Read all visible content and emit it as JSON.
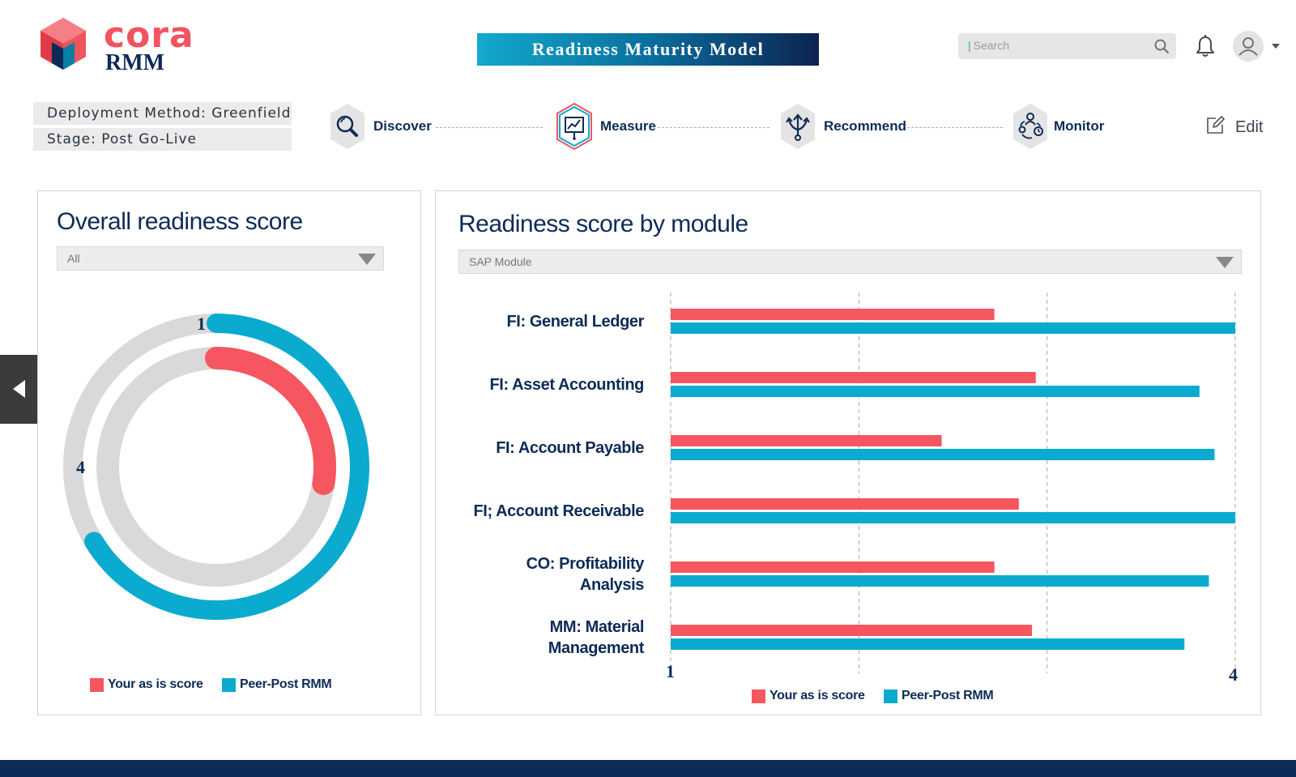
{
  "app": {
    "logo_word": "cora",
    "logo_sub": "RMM",
    "title": "Readiness Maturity Model"
  },
  "header": {
    "search_placeholder": "Search",
    "edit_label": "Edit"
  },
  "info": {
    "deployment_method": "Deployment Method: Greenfield",
    "stage": "Stage: Post Go-Live"
  },
  "steps": [
    {
      "label": "Discover",
      "icon": "discover-magnifier-icon"
    },
    {
      "label": "Measure",
      "icon": "measure-chart-icon"
    },
    {
      "label": "Recommend",
      "icon": "recommend-arrows-icon"
    },
    {
      "label": "Monitor",
      "icon": "monitor-people-icon"
    }
  ],
  "colors": {
    "your_score": "#f5565f",
    "peer": "#0aabcf",
    "track": "#d9d9d9",
    "navy": "#0d2b57"
  },
  "overall": {
    "title": "Overall readiness score",
    "filter_value": "All",
    "legend": [
      "Your as is score",
      "Peer-Post RMM"
    ]
  },
  "module": {
    "title": "Readiness score by module",
    "filter_value": "SAP Module",
    "legend": [
      "Your as is score",
      "Peer-Post RMM"
    ]
  },
  "chart_data": [
    {
      "type": "radial-bar",
      "scale_labels": [
        "1",
        "4"
      ],
      "scale_min": 1,
      "scale_max": 4,
      "series": [
        {
          "name": "Peer-Post RMM",
          "value": 3.65
        },
        {
          "name": "Your as is score",
          "value": 2.1
        }
      ]
    },
    {
      "type": "bar",
      "orientation": "horizontal",
      "categories": [
        "FI: General Ledger",
        "FI: Asset Accounting",
        "FI: Account Payable",
        "FI; Account Receivable",
        "CO: Profitability Analysis",
        "MM: Material Management"
      ],
      "xlim": [
        1,
        4
      ],
      "x_tick_labels": [
        "1",
        "4"
      ],
      "grid": true,
      "series": [
        {
          "name": "Your as is score",
          "values": [
            2.72,
            2.94,
            2.44,
            2.85,
            2.72,
            2.92
          ]
        },
        {
          "name": "Peer-Post RMM",
          "values": [
            4.0,
            3.81,
            3.89,
            4.0,
            3.86,
            3.73
          ]
        }
      ]
    }
  ]
}
